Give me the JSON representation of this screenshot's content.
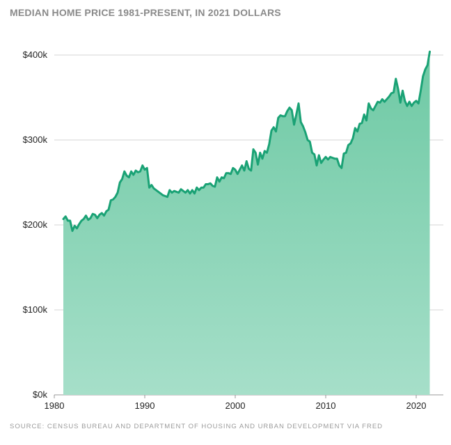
{
  "chart_data": {
    "type": "area",
    "title": "MEDIAN HOME PRICE 1981-PRESENT, IN 2021 DOLLARS",
    "source": "SOURCE: CENSUS BUREAU AND DEPARTMENT OF HOUSING AND URBAN DEVELOPMENT VIA FRED",
    "xlim": [
      1980,
      2023
    ],
    "ylim": [
      0,
      400000
    ],
    "x_ticks": [
      {
        "value": 1980,
        "label": "1980"
      },
      {
        "value": 1990,
        "label": "1990"
      },
      {
        "value": 2000,
        "label": "2000"
      },
      {
        "value": 2010,
        "label": "2010"
      },
      {
        "value": 2020,
        "label": "2020"
      }
    ],
    "y_ticks": [
      {
        "value": 0,
        "label": "$0k"
      },
      {
        "value": 100000,
        "label": "$100k"
      },
      {
        "value": 200000,
        "label": "$200k"
      },
      {
        "value": 300000,
        "label": "$300k"
      },
      {
        "value": 400000,
        "label": "$400k"
      }
    ],
    "grid": true,
    "colors": {
      "line": "#1aa275",
      "fill_top": "#6ec9a4",
      "fill_bottom": "#a6dfc9",
      "grid": "#d6d6d6"
    },
    "series": [
      {
        "x": [
          1981.0,
          1981.25,
          1981.5,
          1981.75,
          1982.0,
          1982.25,
          1982.5,
          1982.75,
          1983.0,
          1983.25,
          1983.5,
          1983.75,
          1984.0,
          1984.25,
          1984.5,
          1984.75,
          1985.0,
          1985.25,
          1985.5,
          1985.75,
          1986.0,
          1986.25,
          1986.5,
          1986.75,
          1987.0,
          1987.25,
          1987.5,
          1987.75,
          1988.0,
          1988.25,
          1988.5,
          1988.75,
          1989.0,
          1989.25,
          1989.5,
          1989.75,
          1990.0,
          1990.25,
          1990.5,
          1990.75,
          1991.0,
          1991.25,
          1991.5,
          1991.75,
          1992.0,
          1992.25,
          1992.5,
          1992.75,
          1993.0,
          1993.25,
          1993.5,
          1993.75,
          1994.0,
          1994.25,
          1994.5,
          1994.75,
          1995.0,
          1995.25,
          1995.5,
          1995.75,
          1996.0,
          1996.25,
          1996.5,
          1996.75,
          1997.0,
          1997.25,
          1997.5,
          1997.75,
          1998.0,
          1998.25,
          1998.5,
          1998.75,
          1999.0,
          1999.25,
          1999.5,
          1999.75,
          2000.0,
          2000.25,
          2000.5,
          2000.75,
          2001.0,
          2001.25,
          2001.5,
          2001.75,
          2002.0,
          2002.25,
          2002.5,
          2002.75,
          2003.0,
          2003.25,
          2003.5,
          2003.75,
          2004.0,
          2004.25,
          2004.5,
          2004.75,
          2005.0,
          2005.25,
          2005.5,
          2005.75,
          2006.0,
          2006.25,
          2006.5,
          2006.75,
          2007.0,
          2007.25,
          2007.5,
          2007.75,
          2008.0,
          2008.25,
          2008.5,
          2008.75,
          2009.0,
          2009.25,
          2009.5,
          2009.75,
          2010.0,
          2010.25,
          2010.5,
          2010.75,
          2011.0,
          2011.25,
          2011.5,
          2011.75,
          2012.0,
          2012.25,
          2012.5,
          2012.75,
          2013.0,
          2013.25,
          2013.5,
          2013.75,
          2014.0,
          2014.25,
          2014.5,
          2014.75,
          2015.0,
          2015.25,
          2015.5,
          2015.75,
          2016.0,
          2016.25,
          2016.5,
          2016.75,
          2017.0,
          2017.25,
          2017.5,
          2017.75,
          2018.0,
          2018.25,
          2018.5,
          2018.75,
          2019.0,
          2019.25,
          2019.5,
          2019.75,
          2020.0,
          2020.25,
          2020.5,
          2020.75,
          2021.0,
          2021.25,
          2021.5
        ],
        "values": [
          207000,
          210000,
          205000,
          205000,
          193000,
          199000,
          196000,
          201000,
          205000,
          207000,
          211000,
          206000,
          208000,
          213000,
          212000,
          208000,
          212000,
          214000,
          211000,
          216000,
          218000,
          229000,
          230000,
          233000,
          238000,
          250000,
          254000,
          263000,
          258000,
          256000,
          263000,
          259000,
          264000,
          262000,
          263000,
          270000,
          265000,
          267000,
          244000,
          247000,
          243000,
          241000,
          239000,
          237000,
          235000,
          234000,
          233000,
          241000,
          238000,
          240000,
          239000,
          238000,
          242000,
          240000,
          238000,
          241000,
          237000,
          241000,
          237000,
          244000,
          241000,
          244000,
          244000,
          248000,
          248000,
          249000,
          246000,
          245000,
          256000,
          251000,
          256000,
          255000,
          261000,
          261000,
          260000,
          267000,
          265000,
          260000,
          265000,
          270000,
          264000,
          275000,
          266000,
          264000,
          289000,
          285000,
          271000,
          285000,
          278000,
          287000,
          285000,
          295000,
          311000,
          315000,
          310000,
          326000,
          329000,
          328000,
          328000,
          334000,
          338000,
          335000,
          318000,
          330000,
          343000,
          321000,
          316000,
          309000,
          300000,
          298000,
          285000,
          283000,
          270000,
          282000,
          273000,
          277000,
          280000,
          277000,
          280000,
          279000,
          278000,
          278000,
          270000,
          267000,
          284000,
          285000,
          294000,
          296000,
          302000,
          314000,
          310000,
          319000,
          320000,
          330000,
          323000,
          343000,
          337000,
          335000,
          340000,
          345000,
          344000,
          348000,
          345000,
          348000,
          351000,
          355000,
          356000,
          372000,
          360000,
          344000,
          358000,
          346000,
          340000,
          345000,
          340000,
          344000,
          346000,
          343000,
          358000,
          375000,
          383000,
          388000,
          404000
        ]
      }
    ]
  }
}
